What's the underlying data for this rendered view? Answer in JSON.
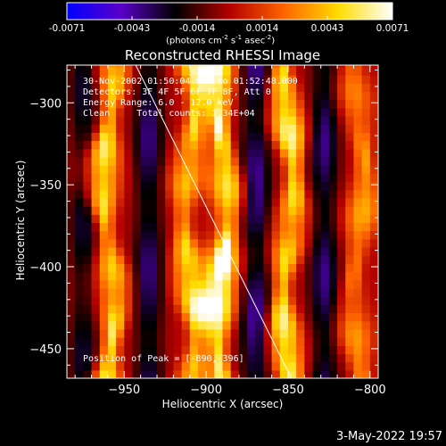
{
  "chart_data": {
    "type": "heatmap",
    "title": "Reconstructed RHESSI Image",
    "xlabel": "Heliocentric X (arcsec)",
    "ylabel": "Heliocentric Y (arcsec)",
    "xlim": [
      -985,
      -795
    ],
    "ylim": [
      -468,
      -277
    ],
    "x_ticks": [
      -950,
      -900,
      -850,
      -800
    ],
    "y_ticks": [
      -300,
      -350,
      -400,
      -450
    ],
    "colorbar": {
      "range": [
        -0.0071,
        0.0071
      ],
      "ticks": [
        "-0.0071",
        "-0.0043",
        "-0.0014",
        "0.0014",
        "0.0043",
        "0.0071"
      ],
      "unit_parts": [
        "(photons cm",
        "-2",
        " s",
        "-1",
        " asec",
        "-2",
        ")"
      ],
      "colormap": [
        "#0000ff",
        "#5a00c8",
        "#000000",
        "#b40000",
        "#ff6400",
        "#ffdc00",
        "#ffffff"
      ]
    },
    "annotations": [
      "30-Nov-2002 01:50:04.000 to 01:52:48.000",
      "Detectors: 3F 4F 5F 6F 7F 8F, Att 0",
      "Energy Range: 6.0 - 12.0 keV",
      "Clean     Total counts: 1.34E+04"
    ],
    "peak_label": "Position of Peak = [-890,-396]",
    "peak": {
      "x": -890,
      "y": -396
    },
    "limb_line": {
      "x": [
        -943,
        -848
      ],
      "y": [
        -277,
        -468
      ]
    },
    "ridges": [
      {
        "x": -960,
        "amplitude": 0.0062
      },
      {
        "x": -910,
        "amplitude": 0.0055
      },
      {
        "x": -890,
        "amplitude": 0.0071
      },
      {
        "x": -850,
        "amplitude": 0.0064
      },
      {
        "x": -807,
        "amplitude": 0.004
      }
    ],
    "troughs": [
      {
        "x": -975,
        "amplitude": -0.003
      },
      {
        "x": -935,
        "amplitude": -0.004
      },
      {
        "x": -870,
        "amplitude": -0.0045
      },
      {
        "x": -828,
        "amplitude": -0.004
      }
    ]
  },
  "footer_date": "3-May-2022 19:57"
}
